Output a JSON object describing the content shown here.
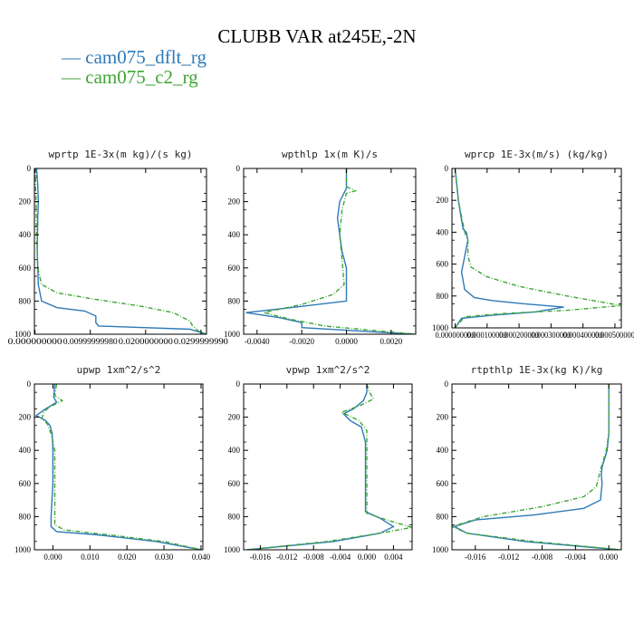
{
  "title": "CLUBB VAR at245E,-2N",
  "legend": [
    {
      "label": "cam075_dflt_rg",
      "color": "#2e7ab8",
      "dash": "solid"
    },
    {
      "label": "cam075_c2_rg",
      "color": "#3fa535",
      "dash": "dashed"
    }
  ],
  "chart_data": [
    {
      "type": "line",
      "title": "wprtp  1E-3x(m kg)/(s kg)",
      "xlim": [
        -0.0001,
        0.031
      ],
      "ylim": [
        0,
        1000
      ],
      "x_ticks": [
        "0.000000000",
        "0.00999999980",
        "0.0200000000",
        "0.0299999990"
      ],
      "x_tick_values": [
        0.0,
        0.01,
        0.02,
        0.03
      ],
      "y_ticks": [
        "0",
        "200",
        "400",
        "600",
        "800",
        "1000"
      ],
      "y_tick_values": [
        0,
        200,
        400,
        600,
        800,
        1000
      ],
      "series": [
        {
          "name": "cam075_dflt_rg",
          "x": [
            0.0003,
            0.0005,
            0.0006,
            0.0005,
            0.0004,
            0.0006,
            0.0012,
            0.004,
            0.009,
            0.011,
            0.011,
            0.0115,
            0.028,
            0.031
          ],
          "y": [
            0,
            100,
            200,
            300,
            500,
            700,
            800,
            840,
            860,
            890,
            930,
            950,
            970,
            1000
          ]
        },
        {
          "name": "cam075_c2_rg",
          "x": [
            0.0001,
            0.0001,
            0.0002,
            0.0003,
            0.0005,
            0.0012,
            0.004,
            0.011,
            0.019,
            0.025,
            0.028,
            0.0285,
            0.0295,
            0.031
          ],
          "y": [
            0,
            100,
            200,
            400,
            600,
            700,
            750,
            790,
            830,
            870,
            920,
            950,
            980,
            1000
          ]
        }
      ]
    },
    {
      "type": "line",
      "title": "wpthlp  1x(m K)/s",
      "xlim": [
        -0.0046,
        0.0031
      ],
      "ylim": [
        0,
        1000
      ],
      "x_ticks": [
        "-0.0040",
        "-0.0020",
        "0.0000",
        "0.0020"
      ],
      "x_tick_values": [
        -0.004,
        -0.002,
        0.0,
        0.002
      ],
      "y_ticks": [
        "0",
        "200",
        "400",
        "600",
        "800",
        "1000"
      ],
      "y_tick_values": [
        0,
        200,
        400,
        600,
        800,
        1000
      ],
      "series": [
        {
          "name": "cam075_dflt_rg",
          "x": [
            0.0,
            0.0,
            -0.0003,
            -0.0004,
            -0.0003,
            -0.0002,
            0.0,
            0.0,
            -0.0025,
            -0.0045,
            -0.003,
            -0.002,
            -0.002,
            0.003
          ],
          "y": [
            0,
            120,
            200,
            300,
            400,
            500,
            600,
            800,
            840,
            870,
            900,
            930,
            960,
            1000
          ]
        },
        {
          "name": "cam075_c2_rg",
          "x": [
            0.0,
            0.0,
            0.0004,
            0.0,
            -0.0002,
            -0.0003,
            -0.0002,
            -0.0001,
            -0.0006,
            -0.002,
            -0.0037,
            -0.0025,
            -0.001,
            0.0031
          ],
          "y": [
            0,
            110,
            135,
            150,
            250,
            400,
            550,
            700,
            760,
            820,
            870,
            910,
            950,
            1000
          ]
        }
      ]
    },
    {
      "type": "line",
      "title": "wprcp  1E-3x(m/s) (kg/kg)",
      "xlim": [
        -1e-05,
        0.00052
      ],
      "ylim": [
        0,
        1000
      ],
      "x_ticks": [
        "0.000000000",
        "0.000100000",
        "0.000200000",
        "0.000300000",
        "0.000400000",
        "0.000500000"
      ],
      "x_tick_values": [
        0.0,
        0.0001,
        0.0002,
        0.0003,
        0.0004,
        0.0005
      ],
      "y_ticks": [
        "0",
        "200",
        "400",
        "600",
        "800",
        "1000"
      ],
      "y_tick_values": [
        0,
        200,
        400,
        600,
        800,
        1000
      ],
      "series": [
        {
          "name": "cam075_dflt_rg",
          "x": [
            0.0,
            5e-06,
            1e-05,
            1.8e-05,
            2.5e-05,
            3.5e-05,
            4e-05,
            3e-05,
            2e-05,
            3e-05,
            6e-05,
            0.00012,
            0.00022,
            0.00034,
            0.00025,
            0.00012,
            2e-05,
            0.0
          ],
          "y": [
            0,
            100,
            200,
            300,
            380,
            400,
            450,
            550,
            650,
            760,
            810,
            830,
            850,
            870,
            900,
            920,
            940,
            1000
          ]
        },
        {
          "name": "cam075_c2_rg",
          "x": [
            0.0,
            5e-06,
            1e-05,
            2e-05,
            3e-05,
            4e-05,
            4e-05,
            5e-05,
            0.0001,
            0.0002,
            0.00035,
            0.00052,
            0.00035,
            0.00015,
            3e-05,
            0.0
          ],
          "y": [
            0,
            100,
            200,
            300,
            400,
            450,
            550,
            620,
            680,
            740,
            800,
            860,
            890,
            910,
            930,
            1000
          ]
        }
      ]
    },
    {
      "type": "line",
      "title": "upwp  1xm^2/s^2",
      "xlim": [
        -0.005,
        0.0405
      ],
      "ylim": [
        0,
        1000
      ],
      "x_ticks": [
        "0.000",
        "0.010",
        "0.020",
        "0.030",
        "0.040"
      ],
      "x_tick_values": [
        0.0,
        0.01,
        0.02,
        0.03,
        0.04
      ],
      "y_ticks": [
        "0",
        "200",
        "400",
        "600",
        "800",
        "1000"
      ],
      "y_tick_values": [
        0,
        200,
        400,
        600,
        800,
        1000
      ],
      "series": [
        {
          "name": "cam075_dflt_rg",
          "x": [
            0.0005,
            0.0002,
            0.001,
            -0.002,
            -0.0045,
            -0.002,
            -0.0008,
            -0.0002,
            0.0,
            0.0,
            -0.0005,
            -0.0005,
            0.001,
            0.012,
            0.028,
            0.04
          ],
          "y": [
            0,
            80,
            110,
            150,
            190,
            220,
            250,
            300,
            400,
            600,
            800,
            860,
            890,
            910,
            950,
            1000
          ]
        },
        {
          "name": "cam075_c2_rg",
          "x": [
            0.001,
            0.0005,
            0.0025,
            -0.001,
            -0.0025,
            -0.003,
            -0.0015,
            -0.0005,
            0.0005,
            0.0005,
            0.0005,
            0.0005,
            0.003,
            0.015,
            0.03,
            0.04
          ],
          "y": [
            0,
            70,
            100,
            140,
            170,
            210,
            240,
            300,
            400,
            600,
            800,
            850,
            880,
            910,
            950,
            1000
          ]
        }
      ]
    },
    {
      "type": "line",
      "title": "vpwp  1xm^2/s^2",
      "xlim": [
        -0.0185,
        0.0068
      ],
      "ylim": [
        0,
        1000
      ],
      "x_ticks": [
        "-0.016",
        "-0.012",
        "-0.008",
        "-0.004",
        "0.000",
        "0.004"
      ],
      "x_tick_values": [
        -0.016,
        -0.012,
        -0.008,
        -0.004,
        0.0,
        0.004
      ],
      "y_ticks": [
        "0",
        "200",
        "400",
        "600",
        "800",
        "1000"
      ],
      "y_tick_values": [
        0,
        200,
        400,
        600,
        800,
        1000
      ],
      "series": [
        {
          "name": "cam075_dflt_rg",
          "x": [
            0.0,
            0.0,
            -0.0005,
            -0.002,
            -0.0035,
            -0.0025,
            -0.0008,
            -0.0002,
            -0.0002,
            -0.0002,
            0.002,
            0.004,
            0.002,
            -0.005,
            -0.018
          ],
          "y": [
            0,
            50,
            100,
            150,
            180,
            220,
            260,
            350,
            500,
            770,
            810,
            860,
            900,
            950,
            1000
          ]
        },
        {
          "name": "cam075_c2_rg",
          "x": [
            0.0,
            0.0004,
            0.001,
            -0.001,
            -0.0038,
            -0.0012,
            0.0,
            0.0,
            0.0,
            0.0,
            0.003,
            0.0068,
            0.002,
            -0.006,
            -0.018
          ],
          "y": [
            0,
            50,
            90,
            130,
            170,
            220,
            280,
            400,
            600,
            780,
            820,
            865,
            900,
            950,
            1000
          ]
        }
      ]
    },
    {
      "type": "line",
      "title": "rtpthlp  1E-3x(kg K)/kg",
      "xlim": [
        -0.0188,
        0.0015
      ],
      "ylim": [
        0,
        1000
      ],
      "x_ticks": [
        "-0.016",
        "-0.012",
        "-0.008",
        "-0.004",
        "0.000"
      ],
      "x_tick_values": [
        -0.016,
        -0.012,
        -0.008,
        -0.004,
        0.0
      ],
      "y_ticks": [
        "0",
        "200",
        "400",
        "600",
        "800",
        "1000"
      ],
      "y_tick_values": [
        0,
        200,
        400,
        600,
        800,
        1000
      ],
      "series": [
        {
          "name": "cam075_dflt_rg",
          "x": [
            0.0,
            0.0,
            0.0,
            -0.0002,
            -0.0005,
            -0.0008,
            -0.0009,
            -0.0008,
            -0.001,
            -0.003,
            -0.009,
            -0.016,
            -0.0185,
            -0.017,
            -0.01,
            0.0012
          ],
          "y": [
            0,
            200,
            300,
            400,
            450,
            500,
            550,
            600,
            700,
            750,
            790,
            820,
            860,
            900,
            950,
            1000
          ]
        },
        {
          "name": "cam075_c2_rg",
          "x": [
            0.0,
            0.0,
            0.0,
            -0.0003,
            -0.0006,
            -0.0009,
            -0.0012,
            -0.0015,
            -0.003,
            -0.008,
            -0.015,
            -0.0188,
            -0.017,
            -0.009,
            0.0015
          ],
          "y": [
            0,
            200,
            300,
            400,
            450,
            500,
            560,
            620,
            680,
            740,
            800,
            860,
            900,
            950,
            1000
          ]
        }
      ]
    }
  ]
}
